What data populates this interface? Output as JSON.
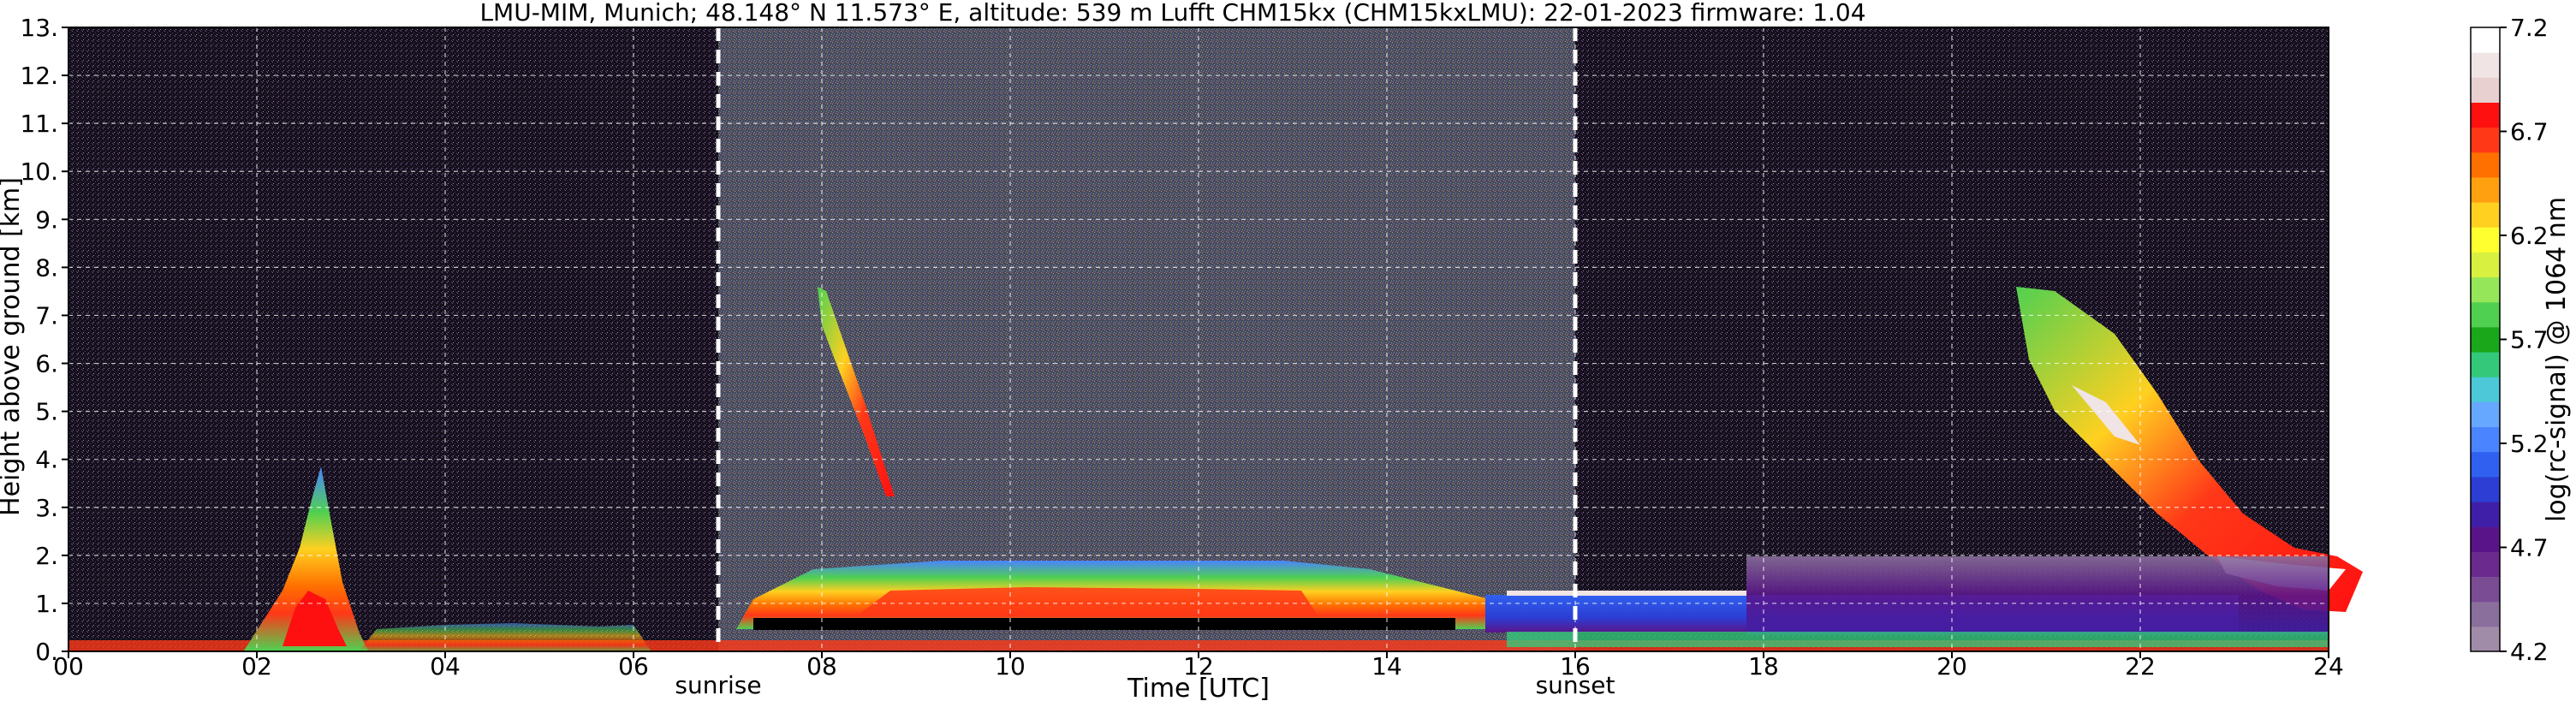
{
  "chart_data": {
    "type": "heatmap",
    "title": "LMU-MIM, Munich; 48.148° N 11.573° E, altitude: 539 m    Lufft CHM15kx (CHM15kxLMU): 22-01-2023    firmware: 1.04",
    "xlabel": "Time [UTC]",
    "ylabel": "Height above ground [km]",
    "colorbar_label": "log(rc-signal) @ 1064 nm",
    "xlim": [
      0,
      24
    ],
    "ylim": [
      0,
      13
    ],
    "x_ticks": [
      "00",
      "02",
      "04",
      "06",
      "08",
      "10",
      "12",
      "14",
      "16",
      "18",
      "20",
      "22",
      "24"
    ],
    "y_ticks": [
      "0.",
      "1.",
      "2.",
      "3.",
      "4.",
      "5.",
      "6.",
      "7.",
      "8.",
      "9.",
      "10.",
      "11.",
      "12.",
      "13."
    ],
    "colorbar_range": [
      4.2,
      7.2
    ],
    "colorbar_ticks": [
      "4.2",
      "4.7",
      "5.2",
      "5.7",
      "6.2",
      "6.7",
      "7.2"
    ],
    "colorbar_colors": [
      "#a08ca8",
      "#8a6e9c",
      "#7a4c94",
      "#6a2a8e",
      "#5a148a",
      "#3f1fa8",
      "#2c3ed4",
      "#3060f0",
      "#4a84ff",
      "#66a8ff",
      "#4cc8d8",
      "#34c87a",
      "#1aa81a",
      "#50d050",
      "#96e65a",
      "#d8f040",
      "#ffff30",
      "#ffd020",
      "#ffa010",
      "#ff7000",
      "#ff3818",
      "#ff1010",
      "#e8d0d0",
      "#f0e4e4",
      "#ffffff"
    ],
    "grid": true,
    "annotations": [
      {
        "text": "sunrise",
        "x": 6.9
      },
      {
        "text": "sunset",
        "x": 16.0
      }
    ]
  }
}
